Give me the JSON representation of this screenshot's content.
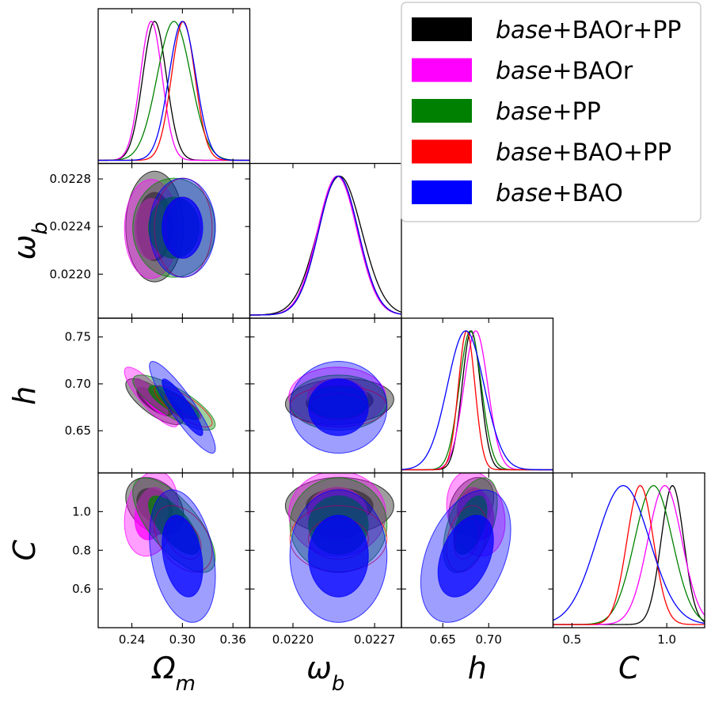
{
  "chart_data": {
    "type": "triangle-corner-plot",
    "parameters": [
      {
        "key": "Om",
        "label": "Ω",
        "sub": "m",
        "range": [
          0.2,
          0.38
        ],
        "ticks": [
          0.24,
          0.3,
          0.36
        ],
        "tick_labels": [
          "0.24",
          "0.30",
          "0.36"
        ]
      },
      {
        "key": "ob",
        "label": "ω",
        "sub": "b",
        "range": [
          0.02163,
          0.02293
        ],
        "ticks": [
          0.022,
          0.0224,
          0.0228
        ],
        "tick_labels": [
          "0.0220",
          "0.0224",
          "0.0228"
        ],
        "x_ticks": [
          0.022,
          0.0227
        ],
        "x_tick_labels": [
          "0.0220",
          "0.0227"
        ]
      },
      {
        "key": "h",
        "label": "h",
        "sub": "",
        "range": [
          0.605,
          0.77
        ],
        "ticks": [
          0.65,
          0.7,
          0.75
        ],
        "tick_labels": [
          "0.65",
          "0.70",
          "0.75"
        ],
        "x_ticks": [
          0.65,
          0.7
        ],
        "x_tick_labels": [
          "0.65",
          "0.70"
        ]
      },
      {
        "key": "C",
        "label": "C",
        "sub": "",
        "range": [
          0.4,
          1.2
        ],
        "ticks": [
          0.6,
          0.8,
          1.0
        ],
        "tick_labels": [
          "0.6",
          "0.8",
          "1.0"
        ],
        "x_ticks": [
          0.5,
          1.0
        ],
        "x_tick_labels": [
          "0.5",
          "1.0"
        ]
      }
    ],
    "series": [
      {
        "name": "BAOr+PP",
        "legend_italic": "base",
        "legend_rest": "+BAOr+PP",
        "color": "#000000",
        "mean": {
          "Om": 0.267,
          "ob": 0.0224,
          "h": 0.681,
          "C": 1.03
        },
        "sigma": {
          "Om": 0.014,
          "ob": 0.00019,
          "h": 0.01,
          "C": 0.06
        },
        "corr": {
          "Om_ob": 0.0,
          "Om_h": -0.75,
          "Om_C": -0.3,
          "ob_h": 0.1,
          "ob_C": 0.0,
          "h_C": 0.3
        }
      },
      {
        "name": "BAOr",
        "legend_italic": "base",
        "legend_rest": "+BAOr",
        "color": "#ff00ff",
        "mean": {
          "Om": 0.263,
          "ob": 0.02238,
          "h": 0.686,
          "C": 0.99
        },
        "sigma": {
          "Om": 0.013,
          "ob": 0.00017,
          "h": 0.013,
          "C": 0.09
        },
        "corr": {
          "Om_ob": 0.0,
          "Om_h": -0.85,
          "Om_C": 0.2,
          "ob_h": 0.0,
          "ob_C": 0.0,
          "h_C": -0.2
        }
      },
      {
        "name": "PP",
        "legend_italic": "base",
        "legend_rest": "+PP",
        "color": "#008000",
        "mean": {
          "Om": 0.29,
          "ob": 0.02239,
          "h": 0.68,
          "C": 0.93
        },
        "sigma": {
          "Om": 0.02,
          "ob": 0.00017,
          "h": 0.012,
          "C": 0.1
        },
        "corr": {
          "Om_ob": 0.0,
          "Om_h": -0.8,
          "Om_C": -0.7,
          "ob_h": 0.0,
          "ob_C": 0.0,
          "h_C": 0.5
        }
      },
      {
        "name": "BAO+PP",
        "legend_italic": "base",
        "legend_rest": "+BAO+PP",
        "color": "#ff0000",
        "mean": {
          "Om": 0.301,
          "ob": 0.02239,
          "h": 0.676,
          "C": 0.86
        },
        "sigma": {
          "Om": 0.014,
          "ob": 0.00017,
          "h": 0.009,
          "C": 0.07
        },
        "corr": {
          "Om_ob": 0.0,
          "Om_h": -0.8,
          "Om_C": -0.4,
          "ob_h": 0.0,
          "ob_C": 0.0,
          "h_C": 0.3
        }
      },
      {
        "name": "BAO",
        "legend_italic": "base",
        "legend_rest": "+BAO",
        "color": "#0000ff",
        "mean": {
          "Om": 0.3,
          "ob": 0.02239,
          "h": 0.675,
          "C": 0.77
        },
        "sigma": {
          "Om": 0.016,
          "ob": 0.00017,
          "h": 0.02,
          "C": 0.14
        },
        "corr": {
          "Om_ob": 0.0,
          "Om_h": -0.9,
          "Om_C": -0.3,
          "ob_h": 0.0,
          "ob_C": 0.0,
          "h_C": 0.4
        }
      }
    ],
    "filled_series": [
      "BAOr+PP",
      "BAOr",
      "PP",
      "BAO"
    ],
    "contour_levels": [
      "68%",
      "95%"
    ],
    "legend": {
      "position": "top-right"
    }
  }
}
